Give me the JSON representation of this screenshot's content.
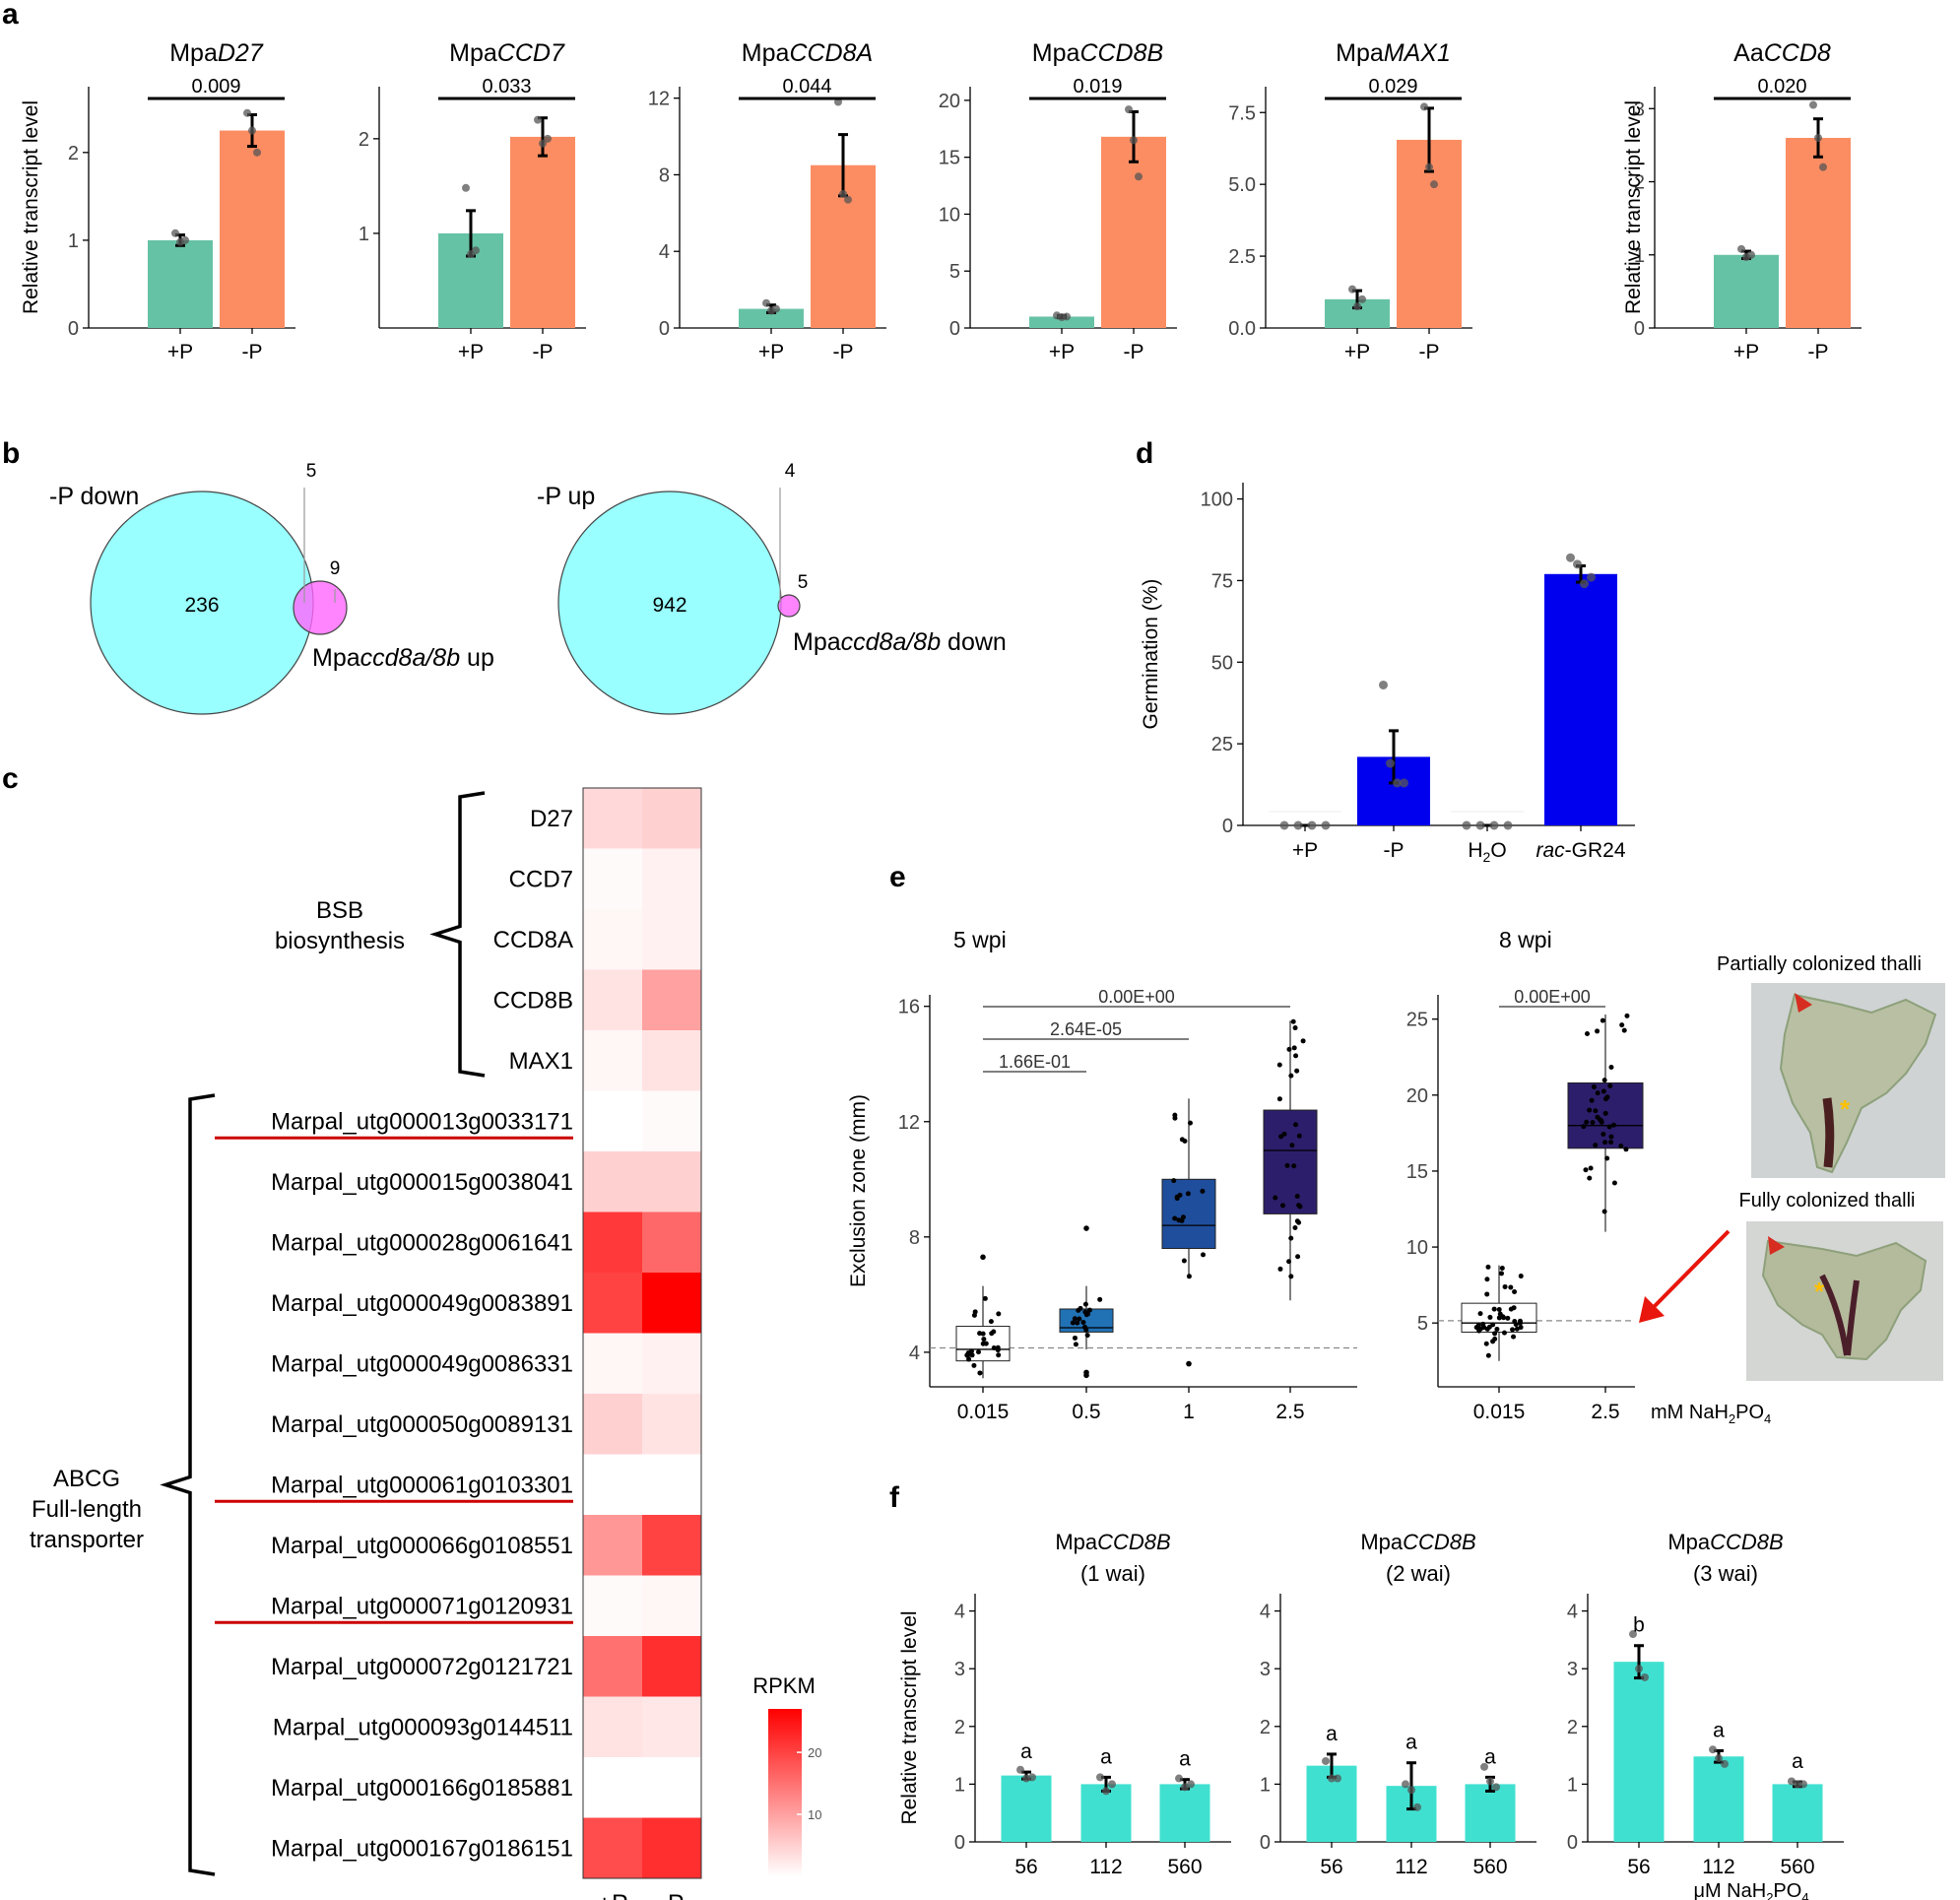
{
  "panel_labels": {
    "a": "a",
    "b": "b",
    "c": "c",
    "d": "d",
    "e": "e",
    "f": "f"
  },
  "chart_data": [
    {
      "id": "a1",
      "type": "bar",
      "title_plain": "Mpa",
      "title_italic": "D27",
      "categories": [
        "+P",
        "-P"
      ],
      "values": [
        1.0,
        2.25
      ],
      "errors": [
        0.06,
        0.18
      ],
      "points": [
        [
          1.08,
          0.98,
          1.0
        ],
        [
          2.45,
          2.25,
          2.0
        ]
      ],
      "ylabel": "Relative transcript level",
      "ylim": [
        0,
        2.75
      ],
      "yticks": [
        0,
        1,
        2
      ],
      "ytick_labels": [
        "0",
        "1",
        "2"
      ],
      "pvalue": "0.009",
      "colors": [
        "#66c2a5",
        "#fc8d62"
      ]
    },
    {
      "id": "a2",
      "type": "bar",
      "title_plain": "Mpa",
      "title_italic": "CCD7",
      "categories": [
        "+P",
        "-P"
      ],
      "values": [
        1.0,
        2.02
      ],
      "errors": [
        0.24,
        0.2
      ],
      "points": [
        [
          1.48,
          0.78,
          0.82
        ],
        [
          2.2,
          1.95,
          2.0
        ]
      ],
      "ylabel": "",
      "ylim": [
        0,
        2.55
      ],
      "yticks": [
        1,
        2
      ],
      "ytick_labels": [
        "1",
        "2"
      ],
      "pvalue": "0.033",
      "colors": [
        "#66c2a5",
        "#fc8d62"
      ]
    },
    {
      "id": "a3",
      "type": "bar",
      "title_plain": "Mpa",
      "title_italic": "CCD8A",
      "categories": [
        "+P",
        "-P"
      ],
      "values": [
        1.0,
        8.5
      ],
      "errors": [
        0.2,
        1.6
      ],
      "points": [
        [
          1.3,
          0.9,
          1.0
        ],
        [
          11.8,
          7.0,
          6.7
        ]
      ],
      "ylabel": "",
      "ylim": [
        0,
        12.6
      ],
      "yticks": [
        0,
        4,
        8,
        12
      ],
      "ytick_labels": [
        "0",
        "4",
        "8",
        "12"
      ],
      "pvalue": "0.044",
      "colors": [
        "#66c2a5",
        "#fc8d62"
      ]
    },
    {
      "id": "a4",
      "type": "bar",
      "title_plain": "Mpa",
      "title_italic": "CCD8B",
      "categories": [
        "+P",
        "-P"
      ],
      "values": [
        1.0,
        16.8
      ],
      "errors": [
        0.1,
        2.2
      ],
      "points": [
        [
          1.1,
          0.95,
          1.0
        ],
        [
          19.2,
          16.5,
          13.3
        ]
      ],
      "ylabel": "",
      "ylim": [
        0,
        21.2
      ],
      "yticks": [
        0,
        5,
        10,
        15,
        20
      ],
      "ytick_labels": [
        "0",
        "5",
        "10",
        "15",
        "20"
      ],
      "pvalue": "0.019",
      "colors": [
        "#66c2a5",
        "#fc8d62"
      ]
    },
    {
      "id": "a5",
      "type": "bar",
      "title_plain": "Mpa",
      "title_italic": "MAX1",
      "categories": [
        "+P",
        "-P"
      ],
      "values": [
        1.0,
        6.55
      ],
      "errors": [
        0.3,
        1.1
      ],
      "points": [
        [
          1.35,
          0.75,
          1.0
        ],
        [
          7.7,
          5.6,
          5.0
        ]
      ],
      "ylabel": "",
      "ylim": [
        0,
        8.4
      ],
      "yticks": [
        0,
        2.5,
        5,
        7.5
      ],
      "ytick_labels": [
        "0.0",
        "2.5",
        "5.0",
        "7.5"
      ],
      "pvalue": "0.029",
      "colors": [
        "#66c2a5",
        "#fc8d62"
      ]
    },
    {
      "id": "a6",
      "type": "bar",
      "title_plain": "Aa",
      "title_italic": "CCD8",
      "categories": [
        "+P",
        "-P"
      ],
      "values": [
        1.0,
        2.6
      ],
      "errors": [
        0.05,
        0.26
      ],
      "points": [
        [
          1.08,
          0.97,
          1.0
        ],
        [
          3.05,
          2.6,
          2.2
        ]
      ],
      "ylabel": "Relative transcript level",
      "ylim": [
        0,
        3.3
      ],
      "yticks": [
        0,
        1,
        2,
        3
      ],
      "ytick_labels": [
        "0",
        "1",
        "2",
        "3"
      ],
      "pvalue": "0.020",
      "colors": [
        "#66c2a5",
        "#fc8d62"
      ]
    },
    {
      "id": "b",
      "type": "venn",
      "left": {
        "set1_label": "-P down",
        "set1_count": "236",
        "overlap_count": "5",
        "set2_count": "9",
        "set2_label_plain": "Mpa",
        "set2_label_italic": "ccd8a/8b",
        "set2_label_suffix": " up"
      },
      "right": {
        "set1_label": "-P up",
        "set1_count": "942",
        "overlap_count": "4",
        "set2_count": "5",
        "set2_label_plain": "Mpa",
        "set2_label_italic": "ccd8a/8b",
        "set2_label_suffix": " down"
      }
    },
    {
      "id": "c",
      "type": "heatmap",
      "columns": [
        "+P",
        "-P"
      ],
      "group1_label": [
        "BSB",
        "biosynthesis"
      ],
      "group2_label": [
        "ABCG",
        "Full-length",
        "transporter"
      ],
      "rows": [
        {
          "label": "D27",
          "values": [
            4,
            5
          ],
          "underline": false
        },
        {
          "label": "CCD7",
          "values": [
            0.5,
            1.5
          ],
          "underline": false
        },
        {
          "label": "CCD8A",
          "values": [
            1,
            1.5
          ],
          "underline": false
        },
        {
          "label": "CCD8B",
          "values": [
            3,
            10
          ],
          "underline": false
        },
        {
          "label": "MAX1",
          "values": [
            1,
            3
          ],
          "underline": false
        },
        {
          "label": "Marpal_utg000013g0033171",
          "values": [
            0,
            0.5
          ],
          "underline": true
        },
        {
          "label": "Marpal_utg000015g0038041",
          "values": [
            5,
            5
          ],
          "underline": false
        },
        {
          "label": "Marpal_utg000028g0061641",
          "values": [
            21,
            16
          ],
          "underline": false
        },
        {
          "label": "Marpal_utg000049g0083891",
          "values": [
            20,
            30
          ],
          "underline": false
        },
        {
          "label": "Marpal_utg000049g0086331",
          "values": [
            1,
            1.5
          ],
          "underline": false
        },
        {
          "label": "Marpal_utg000050g0089131",
          "values": [
            5,
            3
          ],
          "underline": false
        },
        {
          "label": "Marpal_utg000061g0103301",
          "values": [
            0,
            0
          ],
          "underline": true
        },
        {
          "label": "Marpal_utg000066g0108551",
          "values": [
            11,
            20
          ],
          "underline": false
        },
        {
          "label": "Marpal_utg000071g0120931",
          "values": [
            0.5,
            1
          ],
          "underline": true
        },
        {
          "label": "Marpal_utg000072g0121721",
          "values": [
            15,
            22
          ],
          "underline": false
        },
        {
          "label": "Marpal_utg000093g0144511",
          "values": [
            3,
            2.5
          ],
          "underline": false
        },
        {
          "label": "Marpal_utg000166g0185881",
          "values": [
            0,
            0
          ],
          "underline": false
        },
        {
          "label": "Marpal_utg000167g0186151",
          "values": [
            19,
            22
          ],
          "underline": false
        }
      ],
      "colorbar_title": "RPKM",
      "colorbar_range": [
        0,
        27
      ],
      "colorbar_ticks": [
        10,
        20
      ],
      "colorbar_tick_labels": [
        "10",
        "20"
      ],
      "color_low": "#ffffff",
      "color_high": "#ff0000"
    },
    {
      "id": "d",
      "type": "bar",
      "categories": [
        "+P",
        "-P",
        "H2O",
        "rac-GR24"
      ],
      "category_labels": [
        {
          "plain": "+P"
        },
        {
          "plain": "-P"
        },
        {
          "plain": "H",
          "sub": "2",
          "after": "O"
        },
        {
          "italic": "rac",
          "plain": "-GR24"
        }
      ],
      "values": [
        0,
        21,
        0,
        77
      ],
      "errors": [
        0,
        8,
        0,
        2.5
      ],
      "points": [
        [
          0,
          0,
          0,
          0
        ],
        [
          43,
          19,
          13,
          13
        ],
        [
          0,
          0,
          0,
          0
        ],
        [
          82,
          80,
          74,
          76
        ]
      ],
      "ylabel": "Germination (%)",
      "ylim": [
        0,
        105
      ],
      "yticks": [
        0,
        25,
        50,
        75,
        100
      ],
      "ytick_labels": [
        "0",
        "25",
        "50",
        "75",
        "100"
      ],
      "color": "#0000ee"
    },
    {
      "id": "e1",
      "type": "boxplot",
      "title": "5 wpi",
      "categories": [
        "0.015",
        "0.5",
        "1",
        "2.5"
      ],
      "boxes": [
        {
          "q1": 3.7,
          "median": 4.1,
          "q3": 4.9,
          "lower": 3.1,
          "upper": 6.3,
          "outliers": [
            7.3
          ]
        },
        {
          "q1": 4.7,
          "median": 4.85,
          "q3": 5.5,
          "lower": 4.1,
          "upper": 6.3,
          "outliers": [
            8.3,
            3.3,
            3.2
          ]
        },
        {
          "q1": 7.6,
          "median": 8.4,
          "q3": 10.0,
          "lower": 6.6,
          "upper": 12.8,
          "outliers": [
            3.6
          ]
        },
        {
          "q1": 8.8,
          "median": 11.0,
          "q3": 12.4,
          "lower": 5.8,
          "upper": 15.5,
          "outliers": []
        }
      ],
      "group_counts": [
        25,
        18,
        18,
        30
      ],
      "colors": [
        "#ffffff",
        "#2171b5",
        "#1f4e9c",
        "#2d1e6b"
      ],
      "ylabel": "Exclusion zone (mm)",
      "ylim": [
        2.8,
        16.4
      ],
      "yticks": [
        4,
        8,
        12,
        16
      ],
      "ytick_labels": [
        "4",
        "8",
        "12",
        "16"
      ],
      "reference_line": 4.15,
      "comparisons": [
        {
          "from": 0,
          "to": 3,
          "label": "0.00E+00"
        },
        {
          "from": 0,
          "to": 2,
          "label": "2.64E-05"
        },
        {
          "from": 0,
          "to": 1,
          "label": "1.66E-01"
        }
      ]
    },
    {
      "id": "e2",
      "type": "boxplot",
      "title": "8 wpi",
      "categories": [
        "0.015",
        "2.5"
      ],
      "boxes": [
        {
          "q1": 4.4,
          "median": 5.0,
          "q3": 6.3,
          "lower": 2.5,
          "upper": 8.8,
          "outliers": []
        },
        {
          "q1": 16.5,
          "median": 18.0,
          "q3": 20.8,
          "lower": 11.0,
          "upper": 25.3,
          "outliers": []
        }
      ],
      "group_counts": [
        45,
        40
      ],
      "colors": [
        "#ffffff",
        "#2d1e6b"
      ],
      "ylabel": "",
      "ylim": [
        0.8,
        26.6
      ],
      "yticks": [
        5,
        10,
        15,
        20,
        25
      ],
      "ytick_labels": [
        "5",
        "10",
        "15",
        "20",
        "25"
      ],
      "reference_line": 5.15,
      "comparisons": [
        {
          "from": 0,
          "to": 1,
          "label": "0.00E+00"
        }
      ],
      "unit_label_plain": "mM NaH",
      "unit_label_sub": "2",
      "unit_label_after": "PO",
      "unit_label_sub2": "4"
    },
    {
      "id": "f1",
      "type": "bar",
      "title_plain": "Mpa",
      "title_italic": "CCD8B",
      "subtitle": "(1 wai)",
      "categories": [
        "56",
        "112",
        "560"
      ],
      "values": [
        1.15,
        1.0,
        1.0
      ],
      "errors": [
        0.06,
        0.12,
        0.08
      ],
      "points": [
        [
          1.25,
          1.1,
          1.12
        ],
        [
          1.12,
          0.88,
          1.0
        ],
        [
          1.1,
          0.95,
          1.0
        ]
      ],
      "letters": [
        "a",
        "a",
        "a"
      ],
      "ylabel": "Relative transcript level",
      "ylim": [
        0,
        4.3
      ],
      "yticks": [
        0,
        1,
        2,
        3,
        4
      ],
      "ytick_labels": [
        "0",
        "1",
        "2",
        "3",
        "4"
      ],
      "color": "#40e0d0"
    },
    {
      "id": "f2",
      "type": "bar",
      "title_plain": "Mpa",
      "title_italic": "CCD8B",
      "subtitle": "(2 wai)",
      "categories": [
        "56",
        "112",
        "560"
      ],
      "values": [
        1.32,
        0.97,
        1.0
      ],
      "errors": [
        0.2,
        0.4,
        0.12
      ],
      "points": [
        [
          1.4,
          1.1,
          1.1
        ],
        [
          1.0,
          0.9,
          0.6
        ],
        [
          1.3,
          1.05,
          0.95
        ]
      ],
      "letters": [
        "a",
        "a",
        "a"
      ],
      "ylabel": "",
      "ylim": [
        0,
        4.3
      ],
      "yticks": [
        0,
        1,
        2,
        3,
        4
      ],
      "ytick_labels": [
        "0",
        "1",
        "2",
        "3",
        "4"
      ],
      "color": "#40e0d0"
    },
    {
      "id": "f3",
      "type": "bar",
      "title_plain": "Mpa",
      "title_italic": "CCD8B",
      "subtitle": "(3 wai)",
      "categories": [
        "56",
        "112",
        "560"
      ],
      "values": [
        3.12,
        1.48,
        1.0
      ],
      "errors": [
        0.28,
        0.1,
        0.04
      ],
      "points": [
        [
          3.6,
          3.0,
          2.85
        ],
        [
          1.6,
          1.45,
          1.35
        ],
        [
          1.05,
          1.0,
          1.0
        ]
      ],
      "letters": [
        "b",
        "a",
        "a"
      ],
      "ylabel": "",
      "ylim": [
        0,
        4.3
      ],
      "yticks": [
        0,
        1,
        2,
        3,
        4
      ],
      "ytick_labels": [
        "0",
        "1",
        "2",
        "3",
        "4"
      ],
      "color": "#40e0d0",
      "unit_label_plain": "μM  NaH",
      "unit_label_sub": "2",
      "unit_label_after": "PO",
      "unit_label_sub2": "4"
    }
  ],
  "photos": {
    "top_label": "Partially colonized thalli",
    "bottom_label": "Fully colonized thalli",
    "asterisk": "*"
  }
}
